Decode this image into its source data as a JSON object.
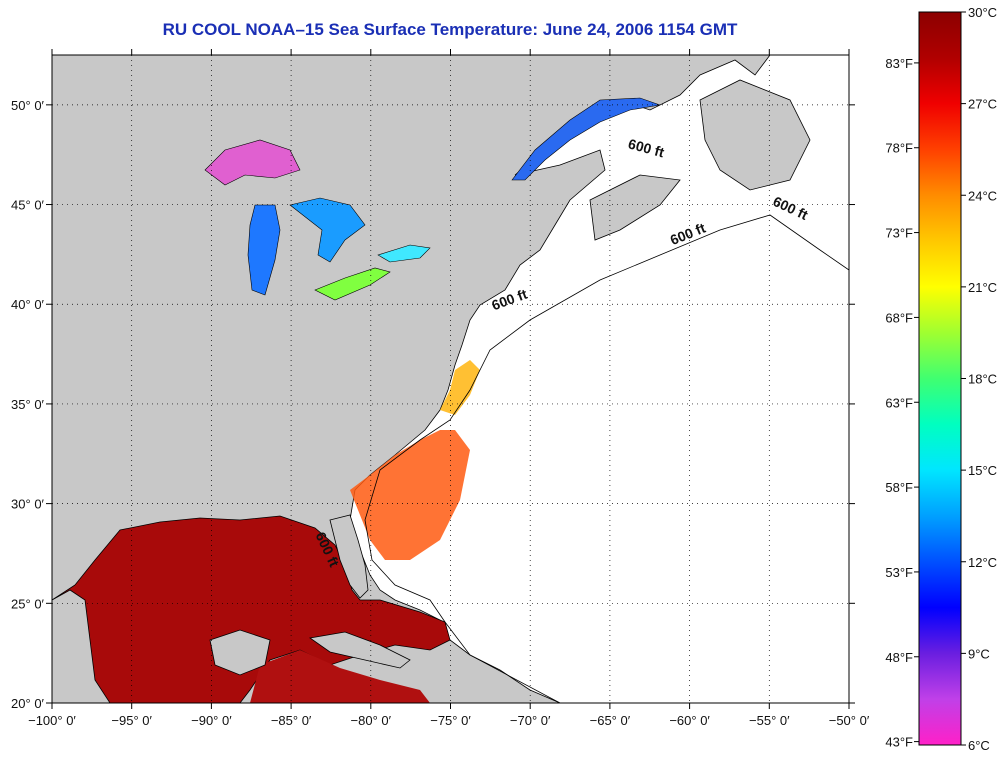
{
  "title": "RU COOL  NOAA–15  Sea Surface Temperature:  June 24, 2006 1154 GMT",
  "map": {
    "lon_range": [
      -100,
      -50
    ],
    "lat_range": [
      20,
      52.5
    ],
    "lon_ticks": [
      {
        "value": -100,
        "label": "−100° 0′"
      },
      {
        "value": -95,
        "label": "−95° 0′"
      },
      {
        "value": -90,
        "label": "−90° 0′"
      },
      {
        "value": -85,
        "label": "−85° 0′"
      },
      {
        "value": -80,
        "label": "−80° 0′"
      },
      {
        "value": -75,
        "label": "−75° 0′"
      },
      {
        "value": -70,
        "label": "−70° 0′"
      },
      {
        "value": -65,
        "label": "−65° 0′"
      },
      {
        "value": -60,
        "label": "−60° 0′"
      },
      {
        "value": -55,
        "label": "−55° 0′"
      },
      {
        "value": -50,
        "label": "−50° 0′"
      }
    ],
    "lat_ticks": [
      {
        "value": 20,
        "label": "20° 0′"
      },
      {
        "value": 25,
        "label": "25° 0′"
      },
      {
        "value": 30,
        "label": "30° 0′"
      },
      {
        "value": 35,
        "label": "35° 0′"
      },
      {
        "value": 40,
        "label": "40° 0′"
      },
      {
        "value": 45,
        "label": "45° 0′"
      },
      {
        "value": 50,
        "label": "50° 0′"
      }
    ],
    "grid": "dotted",
    "land_color": "#c8c8c8",
    "ocean_nodata_color": "#ffffff",
    "contour_labels": [
      {
        "text": "600 ft",
        "lon": -62.8,
        "lat": 47.6,
        "angle": 15
      },
      {
        "text": "600 ft",
        "lon": -53.8,
        "lat": 44.6,
        "angle": 25
      },
      {
        "text": "600 ft",
        "lon": -60.0,
        "lat": 43.3,
        "angle": -22
      },
      {
        "text": "600 ft",
        "lon": -71.2,
        "lat": 40.0,
        "angle": -20
      },
      {
        "text": "600 ft",
        "lon": -83.0,
        "lat": 27.6,
        "angle": 65
      }
    ]
  },
  "colorbar": {
    "colors": [
      "#ff20c8",
      "#c040e8",
      "#6a1ee0",
      "#0000ff",
      "#0050ff",
      "#00a0ff",
      "#00e6ff",
      "#00ffc0",
      "#40ff70",
      "#a0ff30",
      "#ffff00",
      "#ffc800",
      "#ff8c00",
      "#ff4000",
      "#f00000",
      "#b00000",
      "#8c0000"
    ],
    "celsius": [
      {
        "value": 30,
        "label": "30°C"
      },
      {
        "value": 27,
        "label": "27°C"
      },
      {
        "value": 24,
        "label": "24°C"
      },
      {
        "value": 21,
        "label": "21°C"
      },
      {
        "value": 18,
        "label": "18°C"
      },
      {
        "value": 15,
        "label": "15°C"
      },
      {
        "value": 12,
        "label": "12°C"
      },
      {
        "value": 9,
        "label": "9°C"
      },
      {
        "value": 6,
        "label": "6°C"
      }
    ],
    "fahrenheit": [
      {
        "value": 83,
        "label": "83°F"
      },
      {
        "value": 78,
        "label": "78°F"
      },
      {
        "value": 73,
        "label": "73°F"
      },
      {
        "value": 68,
        "label": "68°F"
      },
      {
        "value": 63,
        "label": "63°F"
      },
      {
        "value": 58,
        "label": "58°F"
      },
      {
        "value": 53,
        "label": "53°F"
      },
      {
        "value": 48,
        "label": "48°F"
      },
      {
        "value": 43,
        "label": "43°F"
      }
    ]
  }
}
